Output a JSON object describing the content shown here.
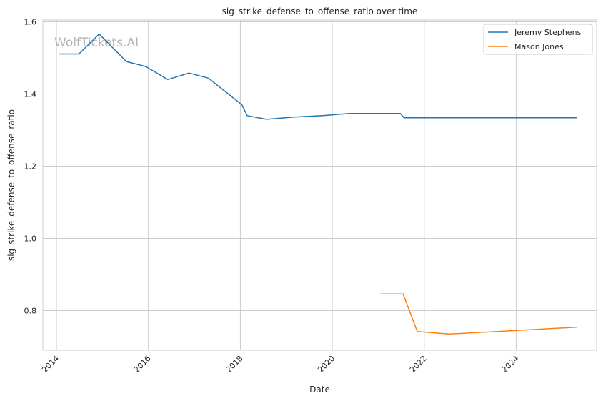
{
  "watermark": "WolfTickets.AI",
  "chart_data": {
    "type": "line",
    "title": "sig_strike_defense_to_offense_ratio over time",
    "xlabel": "Date",
    "ylabel": "sig_strike_defense_to_offense_ratio",
    "xlim": [
      "2013-09-15",
      "2025-10-01"
    ],
    "ylim": [
      0.69,
      1.605
    ],
    "x_ticks": [
      "2014-01-01",
      "2016-01-01",
      "2018-01-01",
      "2020-01-01",
      "2022-01-01",
      "2024-01-01"
    ],
    "x_tick_labels": [
      "2014",
      "2016",
      "2018",
      "2020",
      "2022",
      "2024"
    ],
    "y_ticks": [
      0.8,
      1.0,
      1.2,
      1.4,
      1.6
    ],
    "y_tick_labels": [
      "0.8",
      "1.0",
      "1.2",
      "1.4",
      "1.6"
    ],
    "grid": true,
    "legend_position": "top-right",
    "series": [
      {
        "name": "Jeremy Stephens",
        "color": "#1f77b4",
        "points": [
          {
            "x": "2014-01-25",
            "y": 1.511
          },
          {
            "x": "2014-06-28",
            "y": 1.511
          },
          {
            "x": "2014-12-06",
            "y": 1.566
          },
          {
            "x": "2015-07-11",
            "y": 1.49
          },
          {
            "x": "2015-12-12",
            "y": 1.476
          },
          {
            "x": "2016-06-04",
            "y": 1.44
          },
          {
            "x": "2016-11-19",
            "y": 1.458
          },
          {
            "x": "2017-04-22",
            "y": 1.444
          },
          {
            "x": "2018-01-14",
            "y": 1.37
          },
          {
            "x": "2018-02-24",
            "y": 1.34
          },
          {
            "x": "2018-07-28",
            "y": 1.33
          },
          {
            "x": "2019-03-02",
            "y": 1.336
          },
          {
            "x": "2019-10-18",
            "y": 1.34
          },
          {
            "x": "2020-05-16",
            "y": 1.346
          },
          {
            "x": "2021-06-26",
            "y": 1.346
          },
          {
            "x": "2021-07-24",
            "y": 1.334
          },
          {
            "x": "2025-04-26",
            "y": 1.334
          }
        ]
      },
      {
        "name": "Mason Jones",
        "color": "#ff7f0e",
        "points": [
          {
            "x": "2021-01-20",
            "y": 0.846
          },
          {
            "x": "2021-07-17",
            "y": 0.846
          },
          {
            "x": "2021-11-06",
            "y": 0.742
          },
          {
            "x": "2022-07-16",
            "y": 0.735
          },
          {
            "x": "2025-04-26",
            "y": 0.754
          }
        ]
      }
    ]
  }
}
